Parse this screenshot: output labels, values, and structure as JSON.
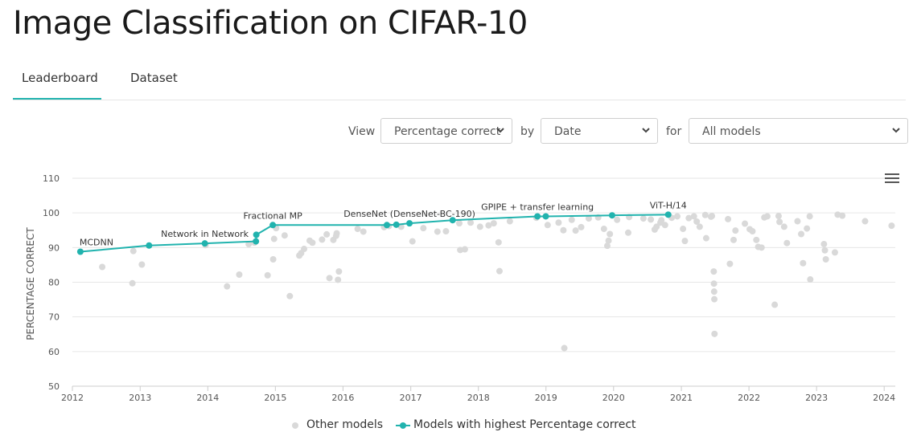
{
  "page": {
    "title": "Image Classification on CIFAR-10"
  },
  "tabs": [
    {
      "label": "Leaderboard",
      "active": true
    },
    {
      "label": "Dataset",
      "active": false
    }
  ],
  "controls": {
    "view_label": "View",
    "view_value": "Percentage correct",
    "by_label": "by",
    "by_value": "Date",
    "for_label": "for",
    "for_value": "All models"
  },
  "colors": {
    "accent": "#21b3ae",
    "other": "#d9d9d9",
    "grid": "#e6e6e6"
  },
  "icons": {
    "menu": "hamburger-icon",
    "chevron": "chevron-down-icon"
  },
  "chart_data": {
    "type": "scatter",
    "ylabel": "PERCENTAGE CORRECT",
    "xlabel": "",
    "ylim": [
      50,
      110
    ],
    "yticks": [
      50,
      60,
      70,
      80,
      90,
      100,
      110
    ],
    "xlim": [
      "2012-01-01",
      "2024-03-01"
    ],
    "xticks": [
      "2012",
      "2013",
      "2014",
      "2015",
      "2016",
      "2017",
      "2018",
      "2019",
      "2020",
      "2021",
      "2022",
      "2023",
      "2024"
    ],
    "grid": true,
    "legend": {
      "placement": "bottom-center",
      "other_label": "Other models",
      "sota_label": "Models with highest Percentage correct"
    },
    "sota_series": [
      {
        "date": "2012-02-13",
        "value": 88.8,
        "label": "MCDNN"
      },
      {
        "date": "2013-02-18",
        "value": 90.6,
        "label": ""
      },
      {
        "date": "2013-12-16",
        "value": 91.2,
        "label": "Network in Network"
      },
      {
        "date": "2014-09-18",
        "value": 91.8,
        "label": ""
      },
      {
        "date": "2014-09-20",
        "value": 93.7,
        "label": ""
      },
      {
        "date": "2014-12-18",
        "value": 96.5,
        "label": "Fractional MP"
      },
      {
        "date": "2016-08-25",
        "value": 96.5,
        "label": ""
      },
      {
        "date": "2016-10-15",
        "value": 96.6,
        "label": ""
      },
      {
        "date": "2016-12-25",
        "value": 97.0,
        "label": "DenseNet (DenseNet-BC-190)"
      },
      {
        "date": "2017-08-15",
        "value": 97.9,
        "label": ""
      },
      {
        "date": "2018-11-16",
        "value": 99.0,
        "label": "GPIPE + transfer learning"
      },
      {
        "date": "2018-12-31",
        "value": 99.0,
        "label": ""
      },
      {
        "date": "2019-12-24",
        "value": 99.3,
        "label": ""
      },
      {
        "date": "2020-10-22",
        "value": 99.5,
        "label": "ViT-H/14"
      }
    ],
    "other_points": [
      [
        "2012-06-10",
        84.4
      ],
      [
        "2012-11-20",
        79.7
      ],
      [
        "2012-11-25",
        89.0
      ],
      [
        "2013-01-10",
        85.1
      ],
      [
        "2013-12-20",
        90.7
      ],
      [
        "2014-04-15",
        78.8
      ],
      [
        "2014-06-20",
        82.2
      ],
      [
        "2014-08-10",
        91.0
      ],
      [
        "2014-09-10",
        91.4
      ],
      [
        "2014-11-20",
        82.0
      ],
      [
        "2014-12-20",
        86.6
      ],
      [
        "2014-12-25",
        92.5
      ],
      [
        "2015-01-05",
        95.6
      ],
      [
        "2015-02-20",
        93.5
      ],
      [
        "2015-03-20",
        76.0
      ],
      [
        "2015-05-10",
        87.7
      ],
      [
        "2015-05-20",
        88.4
      ],
      [
        "2015-06-05",
        89.6
      ],
      [
        "2015-07-05",
        92.0
      ],
      [
        "2015-07-20",
        91.4
      ],
      [
        "2015-09-10",
        92.3
      ],
      [
        "2015-10-05",
        93.8
      ],
      [
        "2015-10-20",
        81.2
      ],
      [
        "2015-11-10",
        92.2
      ],
      [
        "2015-11-25",
        93.4
      ],
      [
        "2015-11-28",
        94.1
      ],
      [
        "2015-12-05",
        80.7
      ],
      [
        "2015-12-10",
        83.1
      ],
      [
        "2016-03-20",
        95.4
      ],
      [
        "2016-04-20",
        94.6
      ],
      [
        "2016-08-10",
        95.9
      ],
      [
        "2016-09-05",
        96.2
      ],
      [
        "2016-11-10",
        96.0
      ],
      [
        "2017-01-10",
        91.8
      ],
      [
        "2017-03-10",
        95.6
      ],
      [
        "2017-05-25",
        94.6
      ],
      [
        "2017-07-10",
        94.7
      ],
      [
        "2017-09-20",
        97.0
      ],
      [
        "2017-09-25",
        89.3
      ],
      [
        "2017-10-20",
        89.5
      ],
      [
        "2017-11-20",
        97.2
      ],
      [
        "2018-01-10",
        96.0
      ],
      [
        "2018-02-25",
        96.4
      ],
      [
        "2018-03-25",
        97.0
      ],
      [
        "2018-04-20",
        91.5
      ],
      [
        "2018-04-25",
        83.2
      ],
      [
        "2018-06-20",
        97.6
      ],
      [
        "2018-11-10",
        98.6
      ],
      [
        "2019-01-10",
        96.5
      ],
      [
        "2019-03-10",
        97.2
      ],
      [
        "2019-04-05",
        95.0
      ],
      [
        "2019-04-10",
        61.0
      ],
      [
        "2019-05-20",
        98.0
      ],
      [
        "2019-06-10",
        94.9
      ],
      [
        "2019-07-10",
        95.9
      ],
      [
        "2019-08-20",
        98.4
      ],
      [
        "2019-10-10",
        98.7
      ],
      [
        "2019-11-10",
        95.4
      ],
      [
        "2019-11-28",
        90.5
      ],
      [
        "2019-12-05",
        92.0
      ],
      [
        "2019-12-12",
        93.9
      ],
      [
        "2020-01-20",
        98.0
      ],
      [
        "2020-03-20",
        94.3
      ],
      [
        "2020-03-25",
        98.8
      ],
      [
        "2020-06-10",
        98.4
      ],
      [
        "2020-07-20",
        98.1
      ],
      [
        "2020-08-10",
        95.2
      ],
      [
        "2020-08-20",
        96.0
      ],
      [
        "2020-09-10",
        97.2
      ],
      [
        "2020-09-15",
        97.9
      ],
      [
        "2020-10-05",
        96.5
      ],
      [
        "2020-11-10",
        98.6
      ],
      [
        "2020-12-10",
        99.0
      ],
      [
        "2021-01-10",
        95.4
      ],
      [
        "2021-01-20",
        91.9
      ],
      [
        "2021-02-10",
        98.5
      ],
      [
        "2021-03-10",
        99.0
      ],
      [
        "2021-03-25",
        97.5
      ],
      [
        "2021-04-10",
        96.0
      ],
      [
        "2021-05-10",
        99.4
      ],
      [
        "2021-05-15",
        92.7
      ],
      [
        "2021-06-10",
        98.9
      ],
      [
        "2021-06-15",
        99.1
      ],
      [
        "2021-06-25",
        83.1
      ],
      [
        "2021-06-26",
        79.6
      ],
      [
        "2021-06-27",
        77.3
      ],
      [
        "2021-06-28",
        75.1
      ],
      [
        "2021-06-29",
        65.1
      ],
      [
        "2021-09-10",
        98.2
      ],
      [
        "2021-09-20",
        85.3
      ],
      [
        "2021-10-10",
        92.2
      ],
      [
        "2021-10-20",
        94.9
      ],
      [
        "2021-12-10",
        96.9
      ],
      [
        "2022-01-05",
        95.3
      ],
      [
        "2022-01-20",
        94.7
      ],
      [
        "2022-02-10",
        92.2
      ],
      [
        "2022-02-20",
        90.2
      ],
      [
        "2022-03-10",
        90.0
      ],
      [
        "2022-03-25",
        98.7
      ],
      [
        "2022-04-10",
        99.0
      ],
      [
        "2022-05-20",
        73.5
      ],
      [
        "2022-06-10",
        99.1
      ],
      [
        "2022-06-15",
        97.4
      ],
      [
        "2022-07-10",
        96.0
      ],
      [
        "2022-07-25",
        91.3
      ],
      [
        "2022-09-20",
        97.6
      ],
      [
        "2022-10-10",
        93.9
      ],
      [
        "2022-10-20",
        85.5
      ],
      [
        "2022-11-10",
        95.5
      ],
      [
        "2022-11-25",
        99.0
      ],
      [
        "2022-11-28",
        80.8
      ],
      [
        "2023-02-10",
        91.0
      ],
      [
        "2023-02-15",
        89.2
      ],
      [
        "2023-02-20",
        86.6
      ],
      [
        "2023-04-10",
        88.6
      ],
      [
        "2023-04-25",
        99.5
      ],
      [
        "2023-05-20",
        99.2
      ],
      [
        "2023-09-20",
        97.6
      ],
      [
        "2024-02-10",
        96.3
      ]
    ]
  }
}
